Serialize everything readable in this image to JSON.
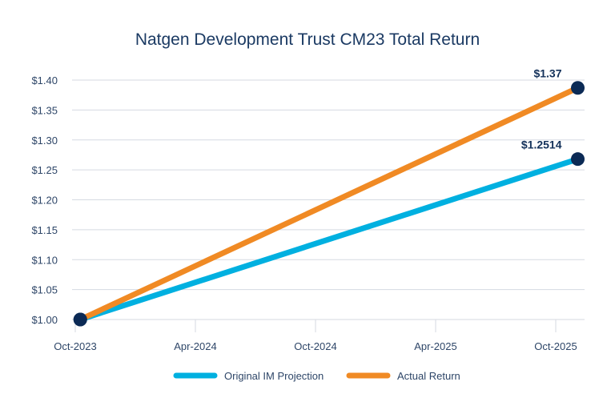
{
  "chart_data": {
    "type": "line",
    "title": "Natgen Development Trust CM23 Total Return",
    "xlabel": "",
    "ylabel": "",
    "x_ticks": [
      "Oct-2023",
      "Apr-2024",
      "Oct-2024",
      "Apr-2025",
      "Oct-2025"
    ],
    "x_tick_months": [
      0,
      6,
      12,
      18,
      24
    ],
    "y_ticks": [
      "$1.00",
      "$1.05",
      "$1.10",
      "$1.15",
      "$1.20",
      "$1.25",
      "$1.30",
      "$1.35",
      "$1.40"
    ],
    "ylim": [
      1.0,
      1.4
    ],
    "grid": true,
    "legend_position": "bottom",
    "series": [
      {
        "name": "Original IM Projection",
        "color": "#00b0e0",
        "x_months": [
          0.25,
          25.1
        ],
        "values": [
          1.0,
          1.2514
        ],
        "end_label": "$1.2514"
      },
      {
        "name": "Actual Return",
        "color": "#f08a24",
        "x_months": [
          0.25,
          25.1
        ],
        "values": [
          1.0,
          1.37
        ],
        "end_label": "$1.37"
      }
    ],
    "marker_color": "#0b2a55"
  }
}
